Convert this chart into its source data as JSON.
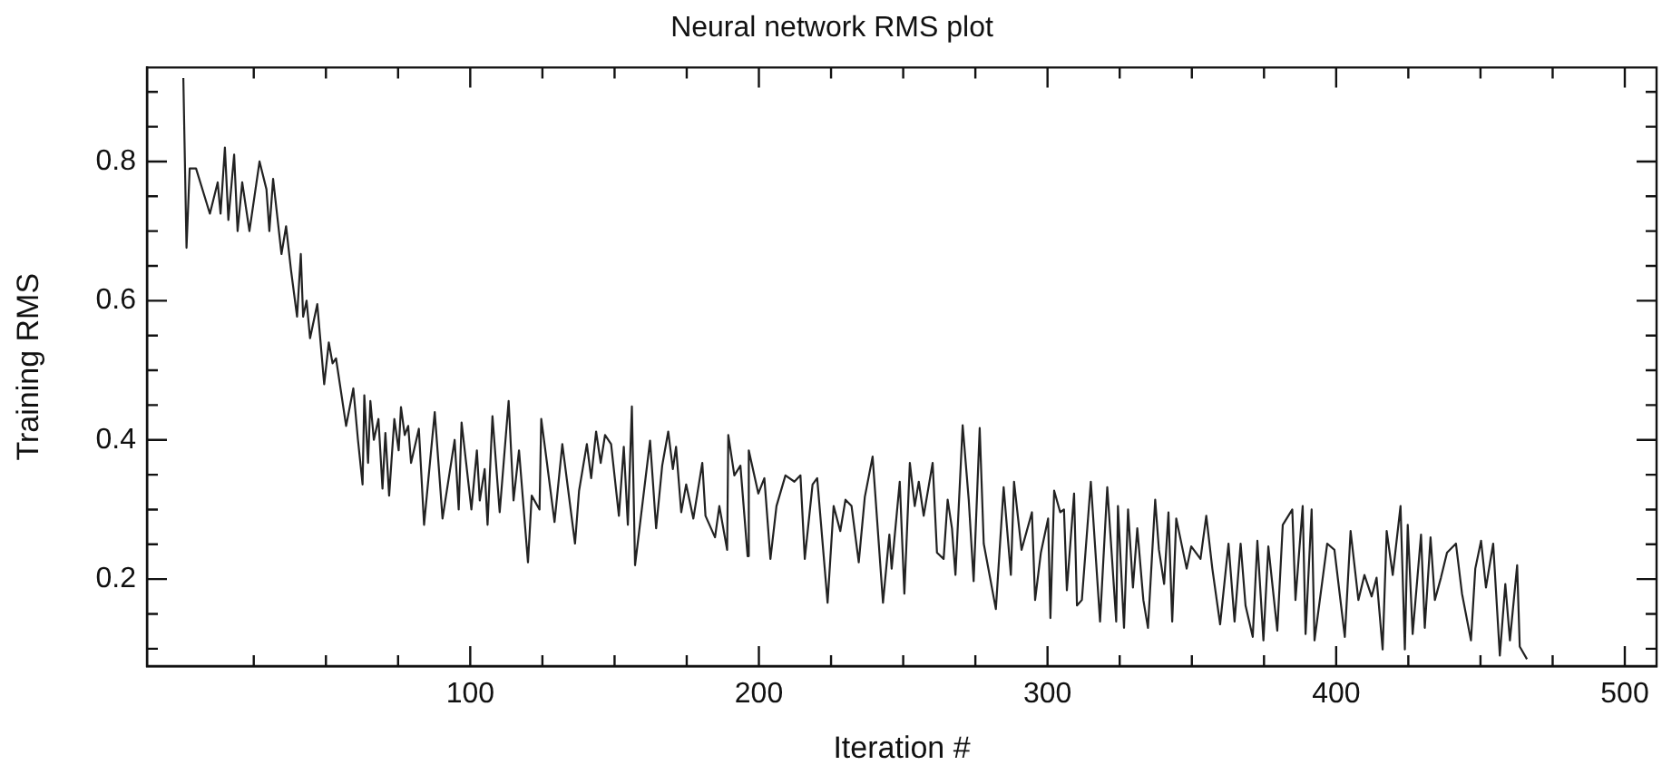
{
  "chart_data": {
    "type": "line",
    "title": "Neural network RMS plot",
    "xlabel": "Iteration #",
    "ylabel": "Training RMS",
    "x": [
      0.6,
      1.7,
      2.8,
      5,
      9.8,
      12.5,
      13.5,
      15,
      16.2,
      18.2,
      19.4,
      21,
      23.5,
      27,
      29.4,
      30.4,
      31.7,
      34.6,
      36.2,
      37.9,
      40,
      41.3,
      42.1,
      43.3,
      44.5,
      47,
      49.4,
      51,
      52.3,
      53.5,
      57,
      59.5,
      61.1,
      62.7,
      63.3,
      64.6,
      65.4,
      66.6,
      68.2,
      69.6,
      70.6,
      71.9,
      73.7,
      75.2,
      76,
      77.3,
      78.5,
      79.5,
      82.2,
      84,
      87.7,
      90.4,
      94.6,
      96,
      97,
      100.4,
      102.3,
      103.3,
      105,
      106,
      107.7,
      110.2,
      113.3,
      115,
      116.9,
      120,
      121.3,
      124,
      124.6,
      126.3,
      129.2,
      131.9,
      136.3,
      137.7,
      140.4,
      141.9,
      143.6,
      145.2,
      146.7,
      148.8,
      151.5,
      153.2,
      154.6,
      156,
      157.1,
      162.3,
      164.4,
      166.5,
      168.6,
      170.2,
      171.3,
      173.1,
      174.8,
      177.3,
      180.4,
      181.5,
      184.8,
      186.3,
      189,
      189.4,
      191.5,
      193.6,
      196.1,
      196.5,
      199.8,
      201.9,
      204,
      206.1,
      209.2,
      212.3,
      214.4,
      215.9,
      218.6,
      220.2,
      223.8,
      225.9,
      228.2,
      230,
      232.1,
      234.6,
      236.7,
      239.4,
      243,
      245.2,
      246,
      248.8,
      250.4,
      252.3,
      254,
      255.4,
      257.1,
      260.2,
      261.7,
      264,
      265.4,
      266.9,
      268.1,
      270.6,
      272.7,
      274.4,
      276.5,
      277.9,
      282.1,
      284.8,
      287.3,
      288.4,
      291,
      294.6,
      295.7,
      297.7,
      300.2,
      301,
      302.3,
      304.4,
      305.7,
      306.7,
      309.2,
      310.2,
      311.9,
      315,
      318.2,
      320.7,
      323.8,
      324.4,
      326.5,
      327.9,
      329.6,
      331.1,
      333.2,
      334.8,
      337.3,
      338.6,
      340.4,
      341.9,
      343.2,
      344.6,
      348.2,
      349.8,
      353,
      355,
      357.1,
      359.8,
      362.7,
      364.8,
      366.9,
      368.6,
      371.1,
      372.7,
      374.8,
      376.5,
      379.6,
      381.5,
      384.8,
      385.9,
      388.4,
      389.4,
      391.5,
      392.5,
      395.2,
      396.9,
      399.4,
      403,
      405,
      407.7,
      409.8,
      412.3,
      414,
      416.1,
      417.5,
      419.6,
      422.3,
      423.8,
      424.8,
      426.5,
      429.4,
      430.7,
      432.7,
      434.2,
      436.3,
      438.4,
      441.5,
      443.6,
      446.7,
      448.2,
      450.2,
      451.9,
      454.4,
      456.7,
      458.6,
      460.2,
      462.7,
      463.6,
      466.1
    ],
    "series": [
      {
        "color": "#222222",
        "values": [
          0.92,
          0.676,
          0.79,
          0.79,
          0.725,
          0.77,
          0.725,
          0.82,
          0.716,
          0.81,
          0.7,
          0.77,
          0.7,
          0.8,
          0.76,
          0.7,
          0.775,
          0.667,
          0.707,
          0.644,
          0.577,
          0.667,
          0.577,
          0.6,
          0.546,
          0.595,
          0.48,
          0.54,
          0.51,
          0.517,
          0.42,
          0.474,
          0.4,
          0.336,
          0.464,
          0.367,
          0.456,
          0.4,
          0.43,
          0.33,
          0.41,
          0.32,
          0.43,
          0.385,
          0.447,
          0.407,
          0.42,
          0.367,
          0.416,
          0.278,
          0.44,
          0.287,
          0.4,
          0.3,
          0.425,
          0.3,
          0.385,
          0.313,
          0.358,
          0.278,
          0.434,
          0.296,
          0.456,
          0.313,
          0.385,
          0.224,
          0.32,
          0.3,
          0.43,
          0.376,
          0.282,
          0.394,
          0.251,
          0.327,
          0.394,
          0.345,
          0.412,
          0.367,
          0.407,
          0.394,
          0.291,
          0.39,
          0.278,
          0.448,
          0.22,
          0.399,
          0.273,
          0.363,
          0.412,
          0.358,
          0.39,
          0.296,
          0.336,
          0.287,
          0.367,
          0.291,
          0.26,
          0.305,
          0.242,
          0.407,
          0.349,
          0.363,
          0.233,
          0.385,
          0.323,
          0.345,
          0.229,
          0.305,
          0.349,
          0.34,
          0.349,
          0.229,
          0.336,
          0.345,
          0.166,
          0.305,
          0.269,
          0.314,
          0.305,
          0.224,
          0.318,
          0.376,
          0.166,
          0.264,
          0.215,
          0.34,
          0.179,
          0.367,
          0.305,
          0.34,
          0.291,
          0.367,
          0.238,
          0.229,
          0.314,
          0.273,
          0.206,
          0.421,
          0.314,
          0.197,
          0.417,
          0.251,
          0.157,
          0.332,
          0.206,
          0.34,
          0.242,
          0.296,
          0.17,
          0.238,
          0.287,
          0.144,
          0.327,
          0.296,
          0.3,
          0.184,
          0.323,
          0.162,
          0.17,
          0.34,
          0.139,
          0.332,
          0.139,
          0.305,
          0.13,
          0.3,
          0.188,
          0.273,
          0.17,
          0.13,
          0.314,
          0.242,
          0.193,
          0.296,
          0.139,
          0.287,
          0.215,
          0.247,
          0.229,
          0.291,
          0.215,
          0.135,
          0.251,
          0.139,
          0.251,
          0.162,
          0.117,
          0.255,
          0.112,
          0.247,
          0.126,
          0.278,
          0.3,
          0.17,
          0.305,
          0.121,
          0.3,
          0.112,
          0.197,
          0.251,
          0.242,
          0.117,
          0.269,
          0.17,
          0.206,
          0.175,
          0.202,
          0.099,
          0.269,
          0.206,
          0.305,
          0.099,
          0.278,
          0.121,
          0.264,
          0.13,
          0.26,
          0.17,
          0.202,
          0.238,
          0.251,
          0.179,
          0.112,
          0.215,
          0.255,
          0.188,
          0.251,
          0.09,
          0.193,
          0.112,
          0.22,
          0.103,
          0.085
        ]
      }
    ],
    "xlim": [
      -12,
      511
    ],
    "ylim": [
      0.075,
      0.935
    ],
    "xticks": [
      {
        "value": 25,
        "label": null
      },
      {
        "value": 50,
        "label": null
      },
      {
        "value": 75,
        "label": null
      },
      100,
      {
        "value": 125,
        "label": null
      },
      {
        "value": 150,
        "label": null
      },
      {
        "value": 175,
        "label": null
      },
      200,
      {
        "value": 225,
        "label": null
      },
      {
        "value": 250,
        "label": null
      },
      {
        "value": 275,
        "label": null
      },
      300,
      {
        "value": 325,
        "label": null
      },
      {
        "value": 350,
        "label": null
      },
      {
        "value": 375,
        "label": null
      },
      400,
      {
        "value": 425,
        "label": null
      },
      {
        "value": 450,
        "label": null
      },
      {
        "value": 475,
        "label": null
      },
      500
    ],
    "yticks": [
      {
        "value": 0.1,
        "label": null
      },
      {
        "value": 0.15,
        "label": null
      },
      0.2,
      {
        "value": 0.25,
        "label": null
      },
      {
        "value": 0.3,
        "label": null
      },
      {
        "value": 0.35,
        "label": null
      },
      0.4,
      {
        "value": 0.45,
        "label": null
      },
      {
        "value": 0.5,
        "label": null
      },
      {
        "value": 0.55,
        "label": null
      },
      0.6,
      {
        "value": 0.65,
        "label": null
      },
      {
        "value": 0.7,
        "label": null
      },
      {
        "value": 0.75,
        "label": null
      },
      0.8,
      {
        "value": 0.85,
        "label": null
      },
      {
        "value": 0.9,
        "label": null
      }
    ],
    "grid": false,
    "legend": false,
    "marker": "none",
    "line_style": "solid"
  }
}
